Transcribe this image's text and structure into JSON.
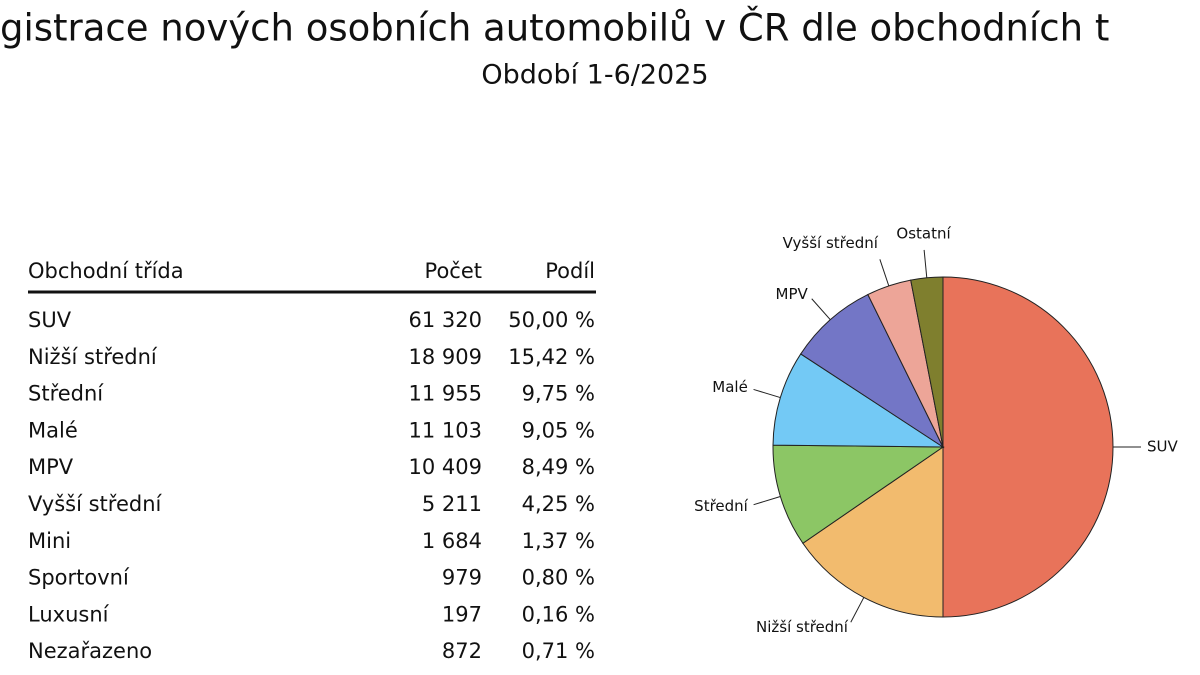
{
  "header": {
    "title": "gistrace nových osobních automobilů v ČR dle obchodních t",
    "subtitle": "Období 1-6/2025"
  },
  "table": {
    "columns": [
      "Obchodní třída",
      "Počet",
      "Podíl"
    ],
    "rows": [
      [
        "SUV",
        "61 320",
        "50,00 %"
      ],
      [
        "Nižší střední",
        "18 909",
        "15,42 %"
      ],
      [
        "Střední",
        "11 955",
        "9,75 %"
      ],
      [
        "Malé",
        "11 103",
        "9,05 %"
      ],
      [
        "MPV",
        "10 409",
        "8,49 %"
      ],
      [
        "Vyšší střední",
        "5 211",
        "4,25 %"
      ],
      [
        "Mini",
        "1 684",
        "1,37 %"
      ],
      [
        "Sportovní",
        "979",
        "0,80 %"
      ],
      [
        "Luxusní",
        "197",
        "0,16 %"
      ],
      [
        "Nezařazeno",
        "872",
        "0,71 %"
      ]
    ]
  },
  "chart_data": {
    "type": "pie",
    "categories": [
      "SUV",
      "Nižší střední",
      "Střední",
      "Malé",
      "MPV",
      "Vyšší střední",
      "Ostatní"
    ],
    "values": [
      50,
      15.42,
      9.75,
      9.05,
      8.49,
      4.25,
      3.04
    ],
    "colors": [
      "#e8735a",
      "#f2bb6e",
      "#8cc665",
      "#73c9f5",
      "#7376c6",
      "#eda598",
      "#7f7f2e"
    ]
  }
}
